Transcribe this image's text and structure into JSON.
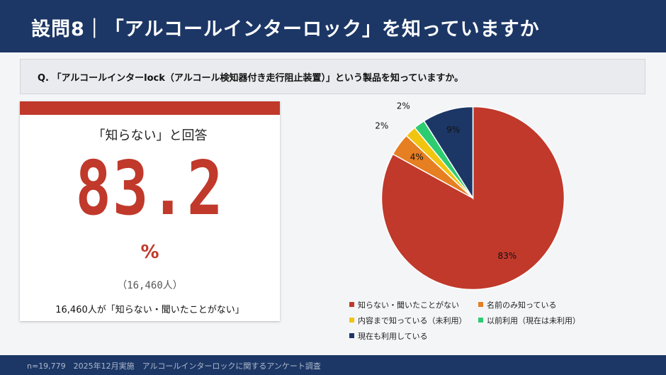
{
  "header": {
    "title": "設問8｜「アルコールインターロック」を知っていますか"
  },
  "question": {
    "text": "Q. 「アルコールインターlock（アルコール検知器付き走行阻止装置）」という製品を知っていますか。"
  },
  "highlight": {
    "caption": "「知らない」と回答",
    "value": "83.2",
    "unit": "%",
    "count": "（16,460人）",
    "note": "16,460人が「知らない・聞いたことがない」",
    "accent_color": "#c0392b"
  },
  "chart_data": {
    "type": "pie",
    "slices": [
      {
        "label": "知らない・聞いたことがない",
        "value": 83,
        "display": "83%",
        "color": "#c0392b"
      },
      {
        "label": "名前のみ知っている",
        "value": 4,
        "display": "4%",
        "color": "#e67e22"
      },
      {
        "label": "内容まで知っている（未利用）",
        "value": 2,
        "display": "2%",
        "color": "#f1c40f"
      },
      {
        "label": "以前利用（現在は未利用）",
        "value": 2,
        "display": "2%",
        "color": "#2ecc71"
      },
      {
        "label": "現在も利用している",
        "value": 9,
        "display": "9%",
        "color": "#1c3766"
      }
    ]
  },
  "footer": {
    "text": "n=19,779　2025年12月実施　アルコールインターロックに関するアンケート調査"
  }
}
